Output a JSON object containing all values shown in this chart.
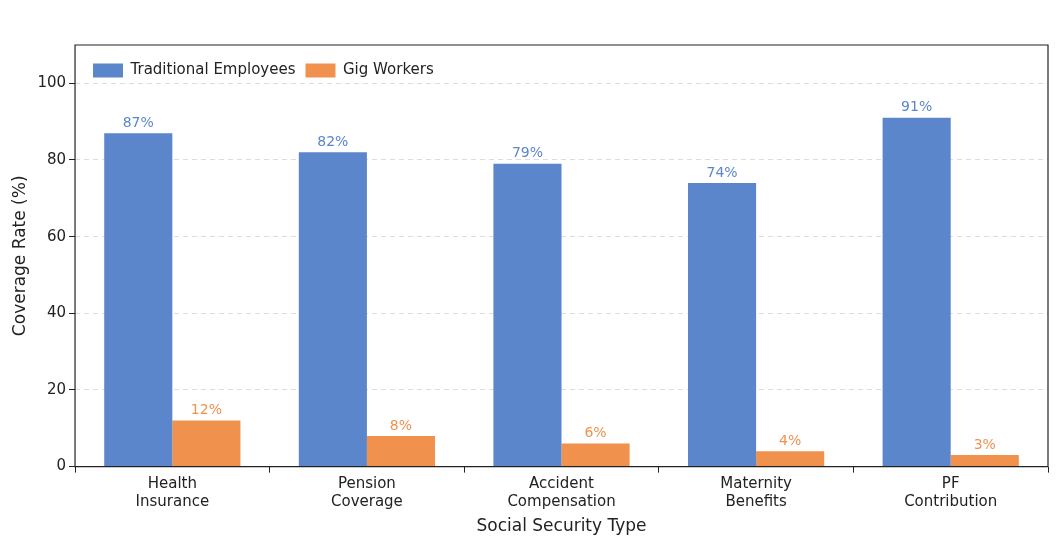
{
  "chart_data": {
    "type": "bar",
    "xlabel": "Social Security Type",
    "ylabel": "Coverage Rate (%)",
    "categories": [
      "Health Insurance",
      "Pension Coverage",
      "Accident Compensation",
      "Maternity Benefits",
      "PF Contribution"
    ],
    "series": [
      {
        "name": "Traditional Employees",
        "color": "#5b86cc",
        "values": [
          87,
          82,
          79,
          74,
          91
        ],
        "value_labels": [
          "87%",
          "82%",
          "79%",
          "74%",
          "91%"
        ]
      },
      {
        "name": "Gig Workers",
        "color": "#f0914e",
        "values": [
          12,
          8,
          6,
          4,
          3
        ],
        "value_labels": [
          "12%",
          "8%",
          "6%",
          "4%",
          "3%"
        ]
      }
    ],
    "ylim": [
      0,
      110
    ],
    "yticks": [
      0,
      20,
      40,
      60,
      80,
      100
    ],
    "grid": "y",
    "legend": "top left"
  }
}
